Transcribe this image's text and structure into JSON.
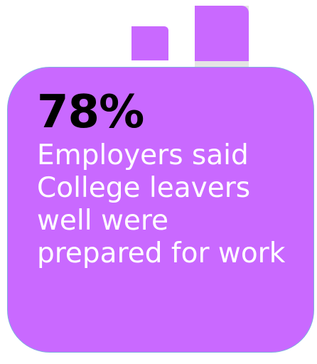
{
  "colors": {
    "purple": "#c969ff",
    "grey": "#e4e4e4",
    "border": "#7faedf",
    "value_text": "#000000",
    "caption_text": "#ffffff"
  },
  "stat": {
    "value": "78%",
    "caption": "Employers said College leavers well were prepared for work"
  }
}
